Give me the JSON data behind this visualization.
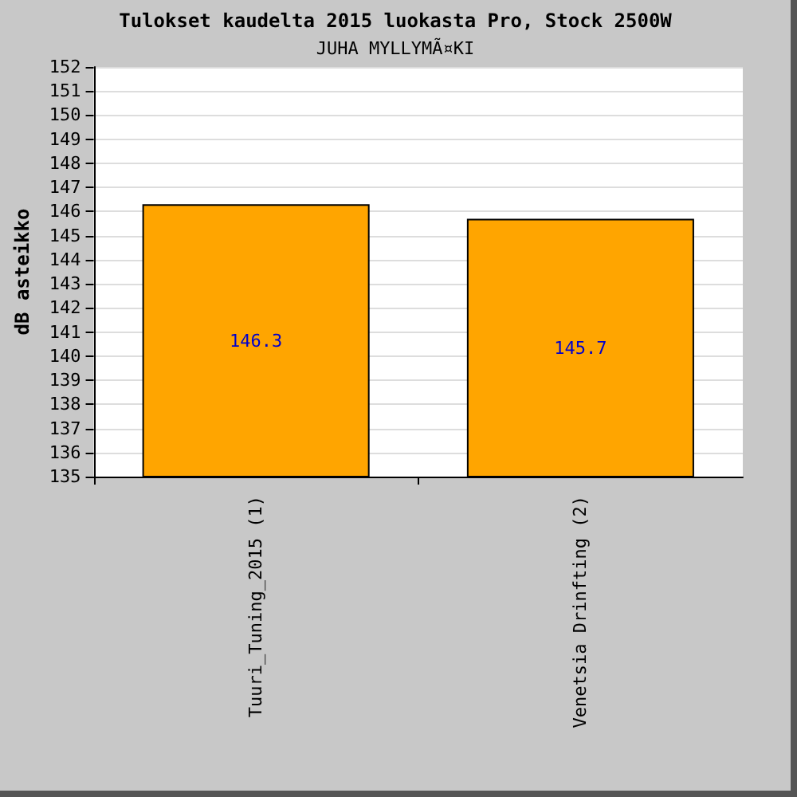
{
  "chart_data": {
    "type": "bar",
    "title": "Tulokset kaudelta 2015 luokasta Pro, Stock 2500W",
    "subtitle": "JUHA MYLLYMÃ¤KI",
    "ylabel": "dB asteikko",
    "categories": [
      "Tuuri_Tuning_2015 (1)",
      "Venetsia Drinfting (2)"
    ],
    "values": [
      146.3,
      145.7
    ],
    "color": "#ffa500",
    "ylim": [
      135,
      152
    ],
    "yticks": [
      135,
      136,
      137,
      138,
      139,
      140,
      141,
      142,
      143,
      144,
      145,
      146,
      147,
      148,
      149,
      150,
      151,
      152
    ],
    "grid": "y",
    "data_labels": true
  }
}
